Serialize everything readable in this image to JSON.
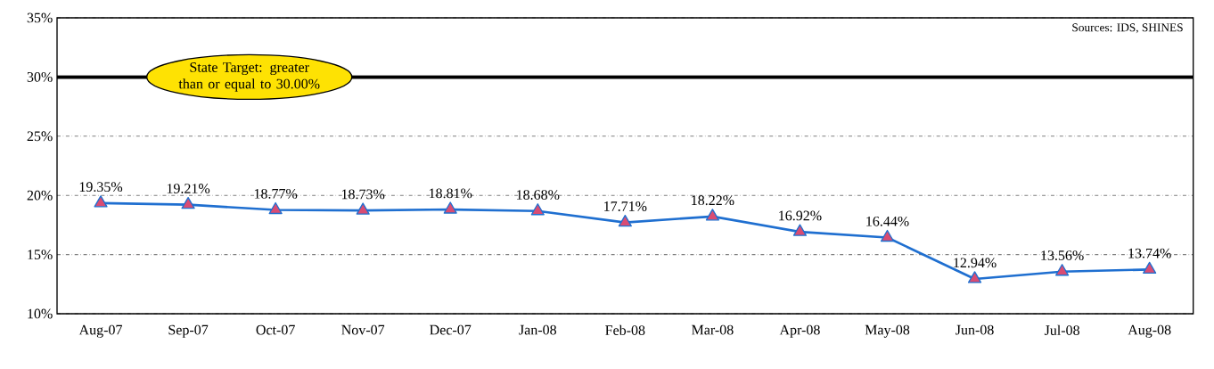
{
  "chart_data": {
    "type": "line",
    "categories": [
      "Aug-07",
      "Sep-07",
      "Oct-07",
      "Nov-07",
      "Dec-07",
      "Jan-08",
      "Feb-08",
      "Mar-08",
      "Apr-08",
      "May-08",
      "Jun-08",
      "Jul-08",
      "Aug-08"
    ],
    "series": [
      {
        "color": "#1f6fd0",
        "values": [
          19.35,
          19.21,
          18.77,
          18.73,
          18.81,
          18.68,
          17.71,
          18.22,
          16.92,
          16.44,
          12.94,
          13.56,
          13.74
        ],
        "value_labels": [
          "19.35%",
          "19.21%",
          "18.77%",
          "18.73%",
          "18.81%",
          "18.68%",
          "17.71%",
          "18.22%",
          "16.92%",
          "16.44%",
          "12.94%",
          "13.56%",
          "13.74%"
        ]
      }
    ],
    "ylim": [
      10,
      35
    ],
    "yticks": [
      {
        "value": 10,
        "label": "10%"
      },
      {
        "value": 15,
        "label": "15%"
      },
      {
        "value": 20,
        "label": "20%"
      },
      {
        "value": 25,
        "label": "25%"
      },
      {
        "value": 30,
        "label": "30%"
      },
      {
        "value": 35,
        "label": "35%"
      }
    ],
    "grid": "y",
    "marker": "triangle",
    "line_style": "solid",
    "ref_lines": [
      {
        "axis": "y",
        "value": 30,
        "label": "State Target: greater than or equal to 30.00%",
        "color": "#000000"
      }
    ],
    "annotations": [
      "Sources: IDS, SHINES"
    ]
  }
}
